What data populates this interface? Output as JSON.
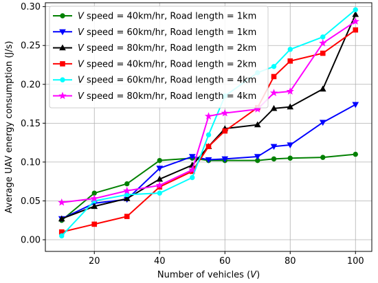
{
  "chart_data": {
    "type": "line",
    "xlabel_prefix": "Number of vehicles (",
    "xlabel_var": "V",
    "xlabel_suffix": ")",
    "ylabel": "Average UAV energy consumption (J/s)",
    "xlim": [
      5,
      105
    ],
    "ylim": [
      -0.015,
      0.305
    ],
    "x_ticks": [
      20,
      40,
      60,
      80,
      100
    ],
    "x_tick_labels": [
      "20",
      "40",
      "60",
      "80",
      "100"
    ],
    "y_ticks": [
      0.0,
      0.05,
      0.1,
      0.15,
      0.2,
      0.25,
      0.3
    ],
    "y_tick_labels": [
      "0.00",
      "0.05",
      "0.10",
      "0.15",
      "0.20",
      "0.25",
      "0.30"
    ],
    "grid": true,
    "legend_position": "top-left",
    "series": [
      {
        "legend_var": "V",
        "legend_rest": " speed = 40km/hr, Road length = 1km",
        "color": "#008000",
        "marker": "circle",
        "x": [
          10,
          20,
          30,
          40,
          50,
          55,
          60,
          70,
          75,
          80,
          90,
          100
        ],
        "y": [
          0.025,
          0.06,
          0.072,
          0.102,
          0.105,
          0.102,
          0.102,
          0.102,
          0.104,
          0.105,
          0.106,
          0.11
        ]
      },
      {
        "legend_var": "V",
        "legend_rest": " speed = 60km/hr, Road length = 1km",
        "color": "#0000ff",
        "marker": "triangle-down",
        "x": [
          10,
          20,
          30,
          40,
          50,
          55,
          60,
          70,
          75,
          80,
          90,
          100
        ],
        "y": [
          0.027,
          0.047,
          0.052,
          0.092,
          0.107,
          0.103,
          0.104,
          0.107,
          0.12,
          0.122,
          0.151,
          0.174
        ]
      },
      {
        "legend_var": "V",
        "legend_rest": " speed = 80km/hr, Road length = 2km",
        "color": "#000000",
        "marker": "triangle-up",
        "x": [
          10,
          20,
          30,
          40,
          50,
          55,
          60,
          70,
          75,
          80,
          90,
          100
        ],
        "y": [
          0.027,
          0.043,
          0.053,
          0.078,
          0.096,
          0.12,
          0.143,
          0.148,
          0.169,
          0.171,
          0.194,
          0.29
        ]
      },
      {
        "legend_var": "V",
        "legend_rest": " speed = 40km/hr, Road length = 2km",
        "color": "#ff0000",
        "marker": "square",
        "x": [
          10,
          20,
          30,
          40,
          50,
          55,
          60,
          70,
          75,
          80,
          90,
          100
        ],
        "y": [
          0.01,
          0.02,
          0.03,
          0.068,
          0.088,
          0.12,
          0.14,
          0.17,
          0.21,
          0.23,
          0.24,
          0.27
        ]
      },
      {
        "legend_var": "V",
        "legend_rest": " speed = 60km/hr, Road length = 4km",
        "color": "#00ffff",
        "marker": "circle",
        "x": [
          10,
          20,
          30,
          40,
          50,
          55,
          60,
          70,
          75,
          80,
          90,
          100
        ],
        "y": [
          0.005,
          0.05,
          0.058,
          0.06,
          0.08,
          0.135,
          0.185,
          0.215,
          0.223,
          0.245,
          0.261,
          0.296
        ]
      },
      {
        "legend_var": "V",
        "legend_rest": " speed = 80km/hr, Road length = 4km",
        "color": "#ff00ff",
        "marker": "star",
        "x": [
          10,
          20,
          30,
          40,
          50,
          55,
          60,
          70,
          75,
          80,
          90,
          100
        ],
        "y": [
          0.048,
          0.053,
          0.063,
          0.07,
          0.09,
          0.159,
          0.163,
          0.168,
          0.189,
          0.191,
          0.253,
          0.281
        ]
      }
    ]
  }
}
